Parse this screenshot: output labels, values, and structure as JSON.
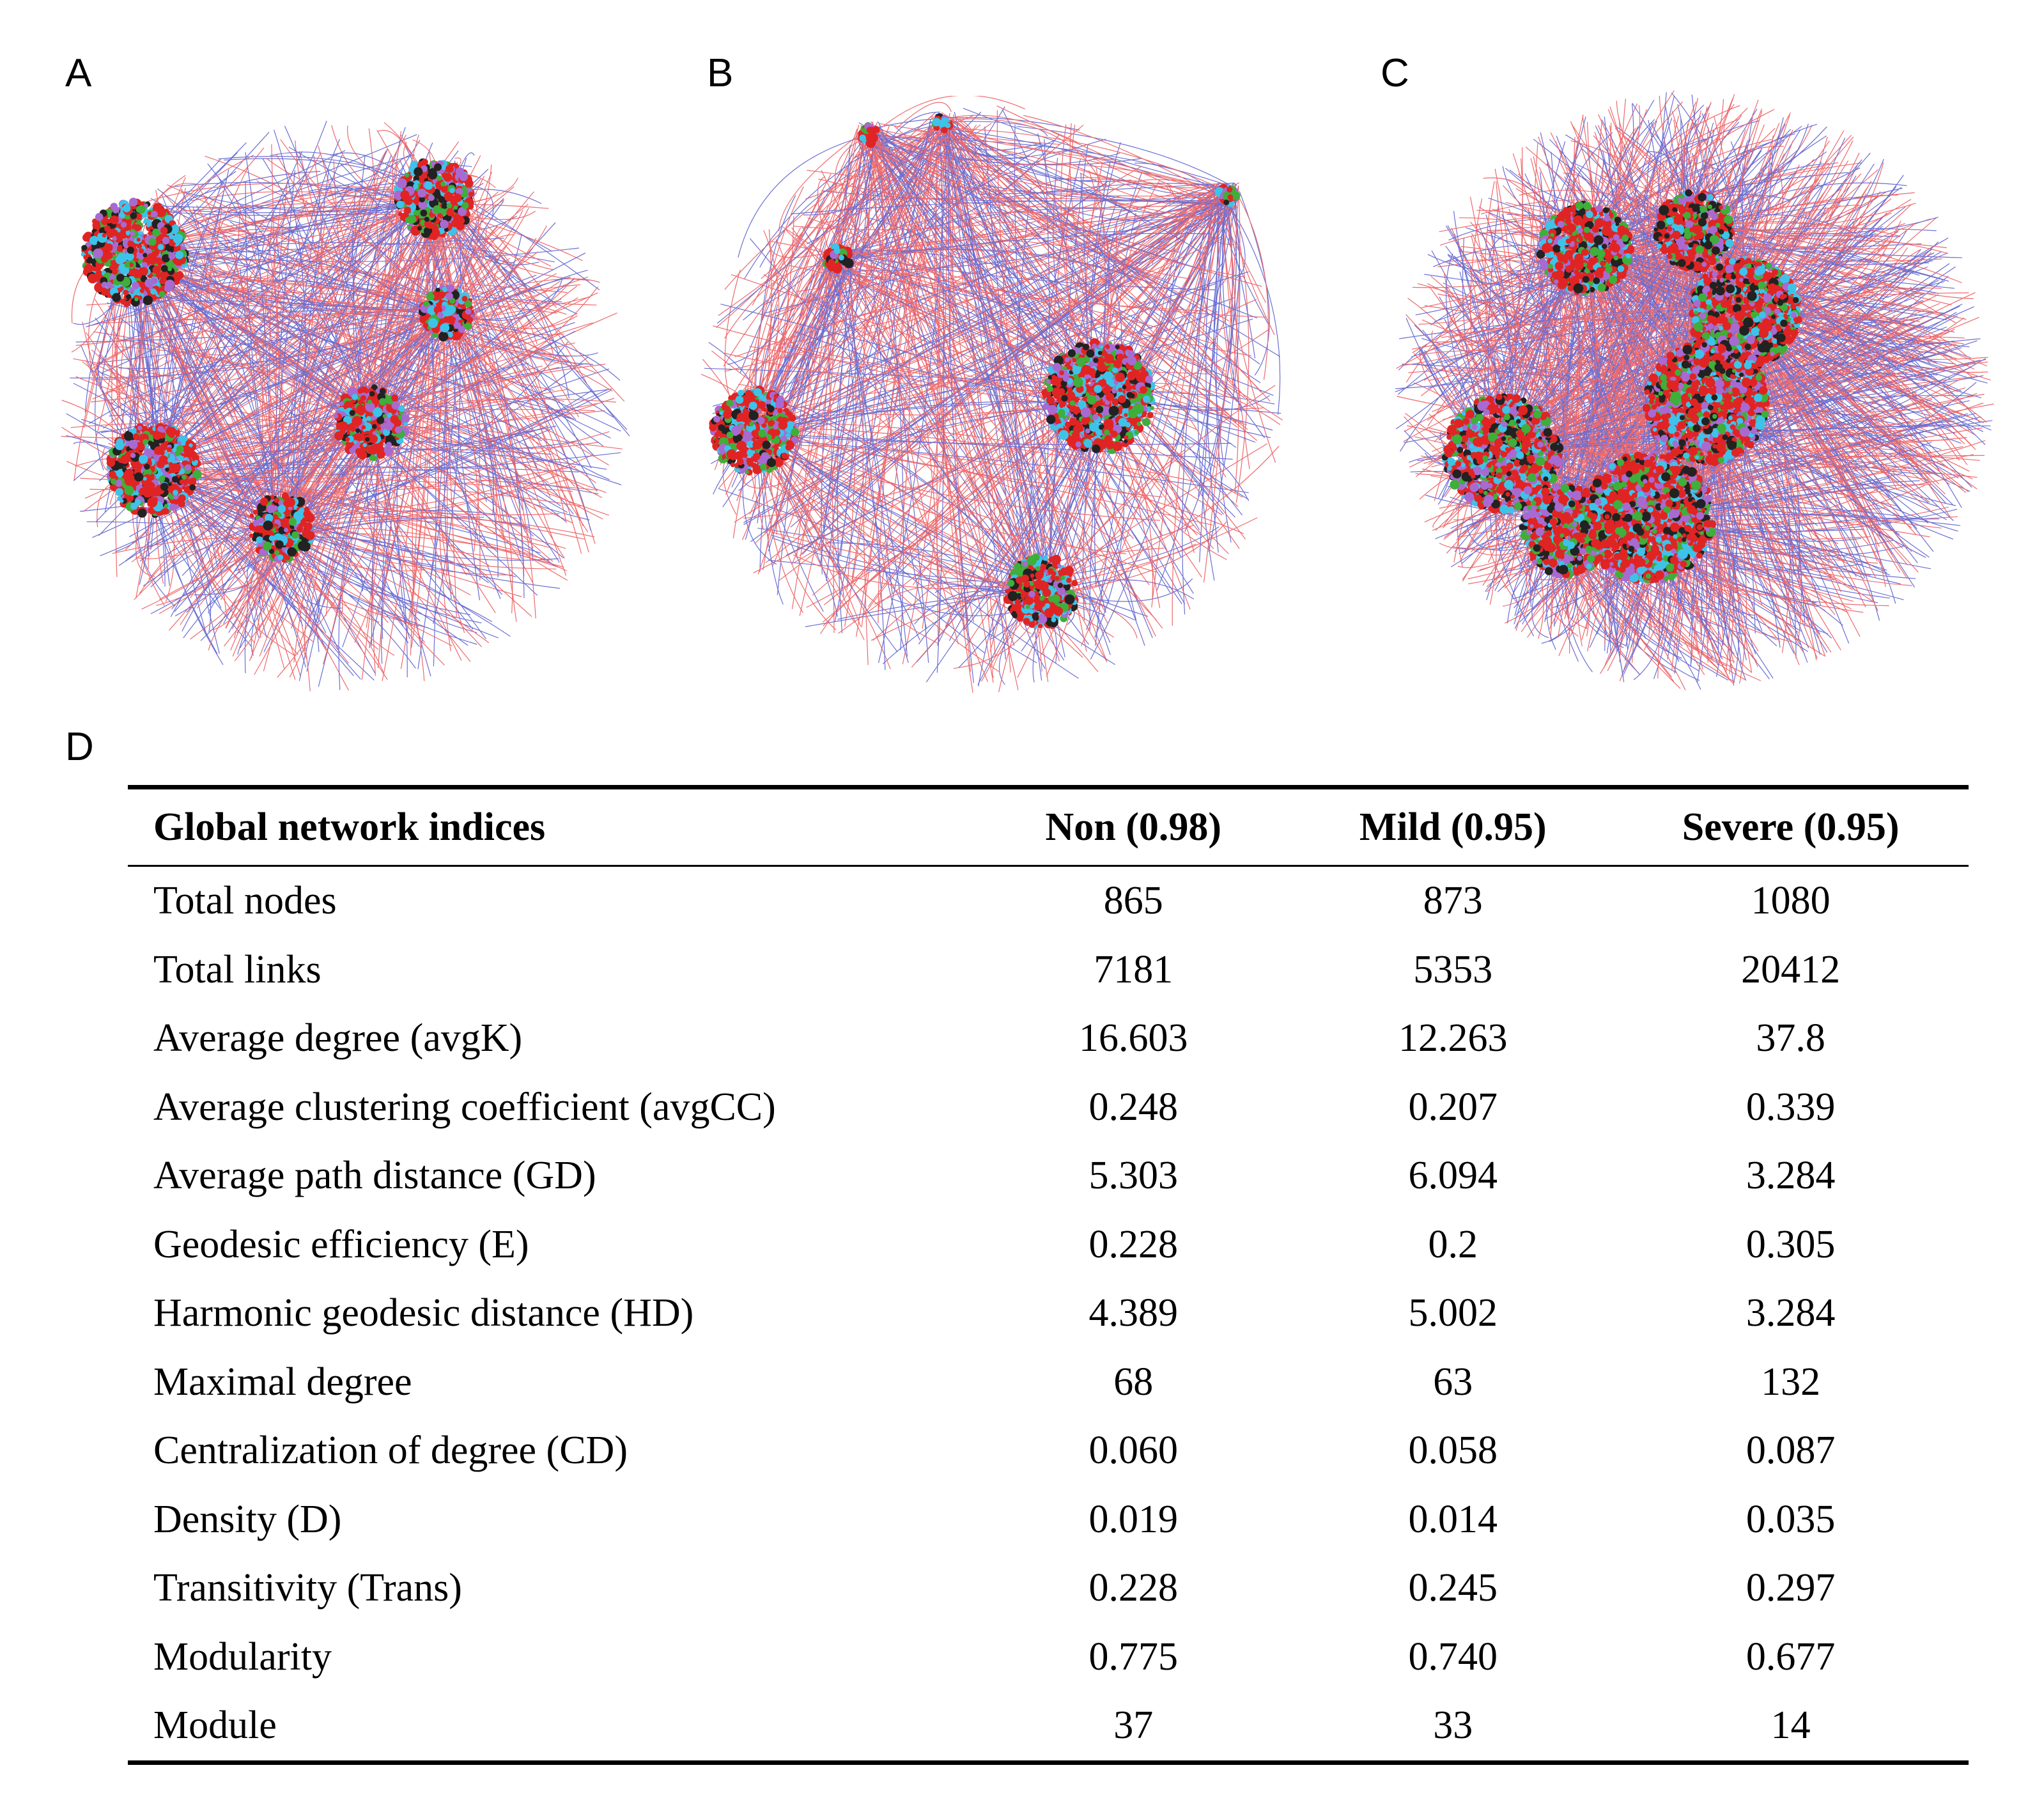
{
  "panels": {
    "a": {
      "label": "A",
      "description_id": "non"
    },
    "b": {
      "label": "B",
      "description_id": "mild"
    },
    "c": {
      "label": "C",
      "description_id": "severe"
    },
    "d": {
      "label": "D"
    }
  },
  "colors": {
    "positive_link": "#e8383d",
    "negative_link": "#3a3fc4",
    "node_red": "#e02424",
    "node_green": "#3fae3a",
    "node_cyan": "#3ec3e8",
    "node_purple": "#a86ad0",
    "node_dark": "#222222"
  },
  "table": {
    "headers": [
      "Global network indices",
      "Non (0.98)",
      "Mild (0.95)",
      "Severe (0.95)"
    ],
    "rows": [
      [
        "Total nodes",
        "865",
        "873",
        "1080"
      ],
      [
        "Total links",
        "7181",
        "5353",
        "20412"
      ],
      [
        "Average degree (avgK)",
        "16.603",
        "12.263",
        "37.8"
      ],
      [
        "Average clustering coefficient (avgCC)",
        "0.248",
        "0.207",
        "0.339"
      ],
      [
        "Average path distance (GD)",
        "5.303",
        "6.094",
        "3.284"
      ],
      [
        "Geodesic efficiency (E)",
        "0.228",
        "0.2",
        "0.305"
      ],
      [
        "Harmonic geodesic distance (HD)",
        "4.389",
        "5.002",
        "3.284"
      ],
      [
        "Maximal degree",
        "68",
        "63",
        "132"
      ],
      [
        "Centralization of degree (CD)",
        "0.060",
        "0.058",
        "0.087"
      ],
      [
        "Density (D)",
        "0.019",
        "0.014",
        "0.035"
      ],
      [
        "Transitivity (Trans)",
        "0.228",
        "0.245",
        "0.297"
      ],
      [
        "Modularity",
        "0.775",
        "0.740",
        "0.677"
      ],
      [
        "Module",
        "37",
        "33",
        "14"
      ]
    ]
  }
}
